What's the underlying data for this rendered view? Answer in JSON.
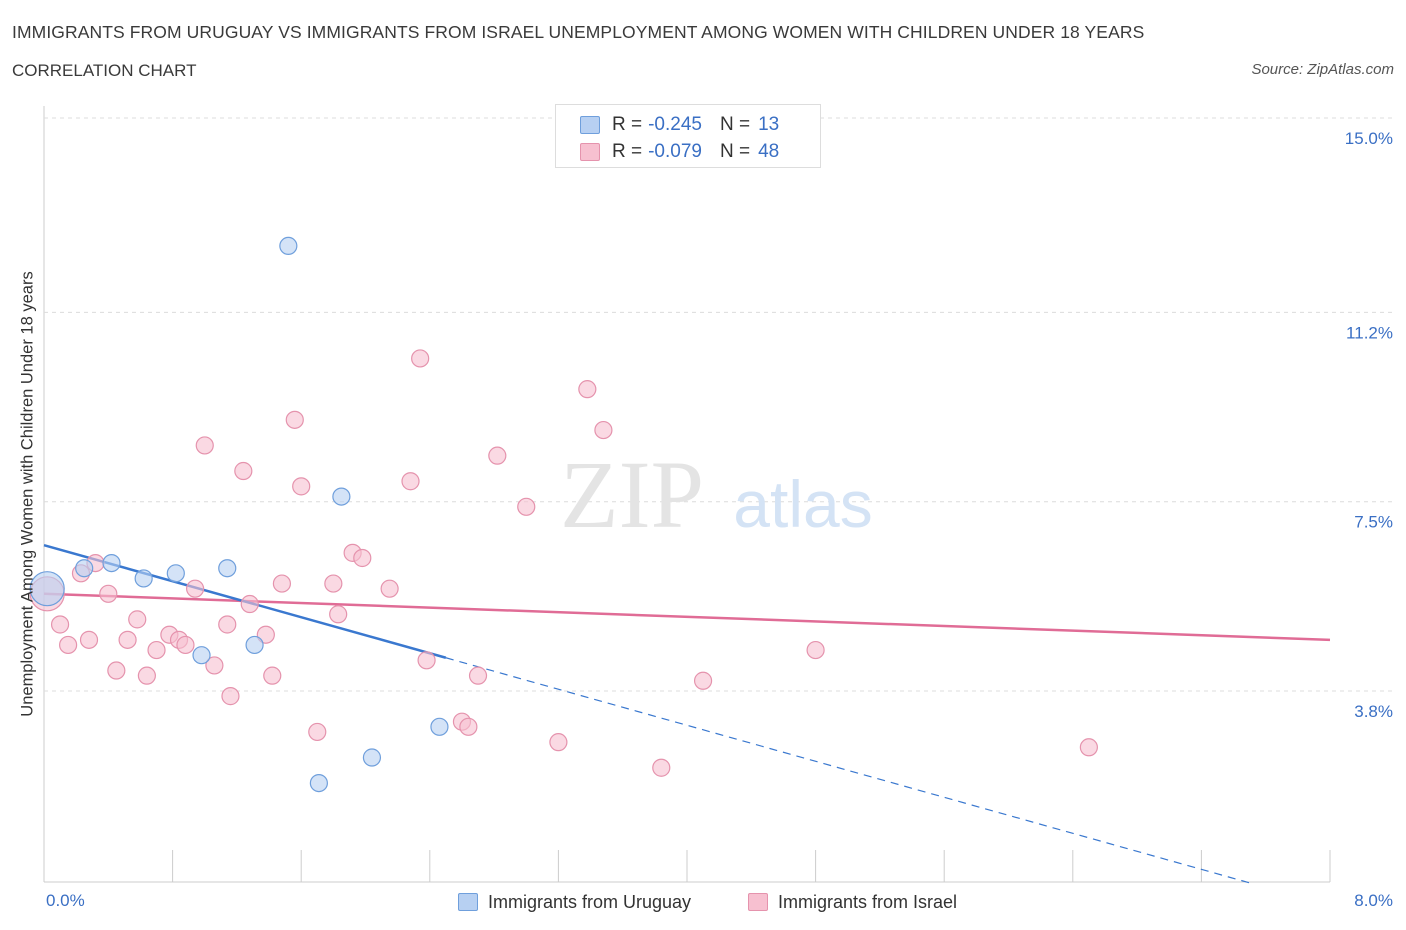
{
  "header": {
    "title": "IMMIGRANTS FROM URUGUAY VS IMMIGRANTS FROM ISRAEL UNEMPLOYMENT AMONG WOMEN WITH CHILDREN UNDER 18 YEARS",
    "subtitle": "CORRELATION CHART",
    "source": "Source: ZipAtlas.com"
  },
  "legend": {
    "rows": [
      {
        "r_label": "R =",
        "r_value": "-0.245",
        "n_label": "N =",
        "n_value": "13"
      },
      {
        "r_label": "R =",
        "r_value": "-0.079",
        "n_label": "N =",
        "n_value": "48"
      }
    ]
  },
  "watermark": {
    "zip": "ZIP",
    "atlas": "atlas"
  },
  "colors": {
    "uruguay_fill": "#b7d0f2",
    "uruguay_stroke": "#6f9fdc",
    "uruguay_line": "#3a78cf",
    "israel_fill": "#f7c0d0",
    "israel_stroke": "#e593ad",
    "israel_line": "#e06c96",
    "grid": "#dcdcdc",
    "tick_text": "#3a6fc4"
  },
  "chart_data": {
    "type": "scatter",
    "title": "IMMIGRANTS FROM URUGUAY VS IMMIGRANTS FROM ISRAEL UNEMPLOYMENT AMONG WOMEN WITH CHILDREN UNDER 18 YEARS",
    "xlabel": "",
    "ylabel": "Unemployment Among Women with Children Under 18 years",
    "xlim": [
      0,
      8
    ],
    "ylim": [
      0,
      15.3
    ],
    "y_ticks": [
      3.8,
      7.5,
      11.2,
      15.0
    ],
    "y_tick_labels": [
      "3.8%",
      "7.5%",
      "11.2%",
      "15.0%"
    ],
    "x_tick_labels": [
      "0.0%",
      "8.0%"
    ],
    "grid": true,
    "legend_position": "top-center",
    "series": [
      {
        "name": "Immigrants from Uruguay",
        "points": [
          {
            "x": 0.02,
            "y": 5.8,
            "size": "large"
          },
          {
            "x": 0.42,
            "y": 6.3
          },
          {
            "x": 0.62,
            "y": 6.0
          },
          {
            "x": 0.82,
            "y": 6.1
          },
          {
            "x": 1.14,
            "y": 6.2
          },
          {
            "x": 0.98,
            "y": 4.5
          },
          {
            "x": 1.31,
            "y": 4.7
          },
          {
            "x": 1.52,
            "y": 12.5
          },
          {
            "x": 1.85,
            "y": 7.6
          },
          {
            "x": 2.46,
            "y": 3.1
          },
          {
            "x": 2.04,
            "y": 2.5
          },
          {
            "x": 1.71,
            "y": 2.0
          },
          {
            "x": 0.25,
            "y": 6.2
          }
        ],
        "trend": {
          "x0": 0.0,
          "y0": 6.65,
          "x1": 2.5,
          "y1": 4.45,
          "dashed_to_x": 7.5,
          "dashed_to_y": 0.05
        }
      },
      {
        "name": "Immigrants from Israel",
        "points": [
          {
            "x": 0.02,
            "y": 5.7,
            "size": "large"
          },
          {
            "x": 0.1,
            "y": 5.1
          },
          {
            "x": 0.15,
            "y": 4.7
          },
          {
            "x": 0.23,
            "y": 6.1
          },
          {
            "x": 0.28,
            "y": 4.8
          },
          {
            "x": 0.32,
            "y": 6.3
          },
          {
            "x": 0.4,
            "y": 5.7
          },
          {
            "x": 0.45,
            "y": 4.2
          },
          {
            "x": 0.52,
            "y": 4.8
          },
          {
            "x": 0.58,
            "y": 5.2
          },
          {
            "x": 0.64,
            "y": 4.1
          },
          {
            "x": 0.7,
            "y": 4.6
          },
          {
            "x": 0.78,
            "y": 4.9
          },
          {
            "x": 0.84,
            "y": 4.8
          },
          {
            "x": 0.88,
            "y": 4.7
          },
          {
            "x": 0.94,
            "y": 5.8
          },
          {
            "x": 1.0,
            "y": 8.6
          },
          {
            "x": 1.06,
            "y": 4.3
          },
          {
            "x": 1.14,
            "y": 5.1
          },
          {
            "x": 1.16,
            "y": 3.7
          },
          {
            "x": 1.24,
            "y": 8.1
          },
          {
            "x": 1.28,
            "y": 5.5
          },
          {
            "x": 1.38,
            "y": 4.9
          },
          {
            "x": 1.42,
            "y": 4.1
          },
          {
            "x": 1.48,
            "y": 5.9
          },
          {
            "x": 1.56,
            "y": 9.1
          },
          {
            "x": 1.6,
            "y": 7.8
          },
          {
            "x": 1.7,
            "y": 3.0
          },
          {
            "x": 1.8,
            "y": 5.9
          },
          {
            "x": 1.83,
            "y": 5.3
          },
          {
            "x": 1.92,
            "y": 6.5
          },
          {
            "x": 1.98,
            "y": 6.4
          },
          {
            "x": 2.15,
            "y": 5.8
          },
          {
            "x": 2.28,
            "y": 7.9
          },
          {
            "x": 2.34,
            "y": 10.3
          },
          {
            "x": 2.38,
            "y": 4.4
          },
          {
            "x": 2.6,
            "y": 3.2
          },
          {
            "x": 2.64,
            "y": 3.1
          },
          {
            "x": 2.7,
            "y": 4.1
          },
          {
            "x": 2.82,
            "y": 8.4
          },
          {
            "x": 3.0,
            "y": 7.4
          },
          {
            "x": 3.2,
            "y": 2.8
          },
          {
            "x": 3.38,
            "y": 9.7
          },
          {
            "x": 3.48,
            "y": 8.9
          },
          {
            "x": 3.84,
            "y": 2.3
          },
          {
            "x": 4.1,
            "y": 4.0
          },
          {
            "x": 4.8,
            "y": 4.6
          },
          {
            "x": 6.5,
            "y": 2.7
          }
        ],
        "trend": {
          "x0": 0.0,
          "y0": 5.7,
          "x1": 8.0,
          "y1": 4.8
        }
      }
    ]
  }
}
